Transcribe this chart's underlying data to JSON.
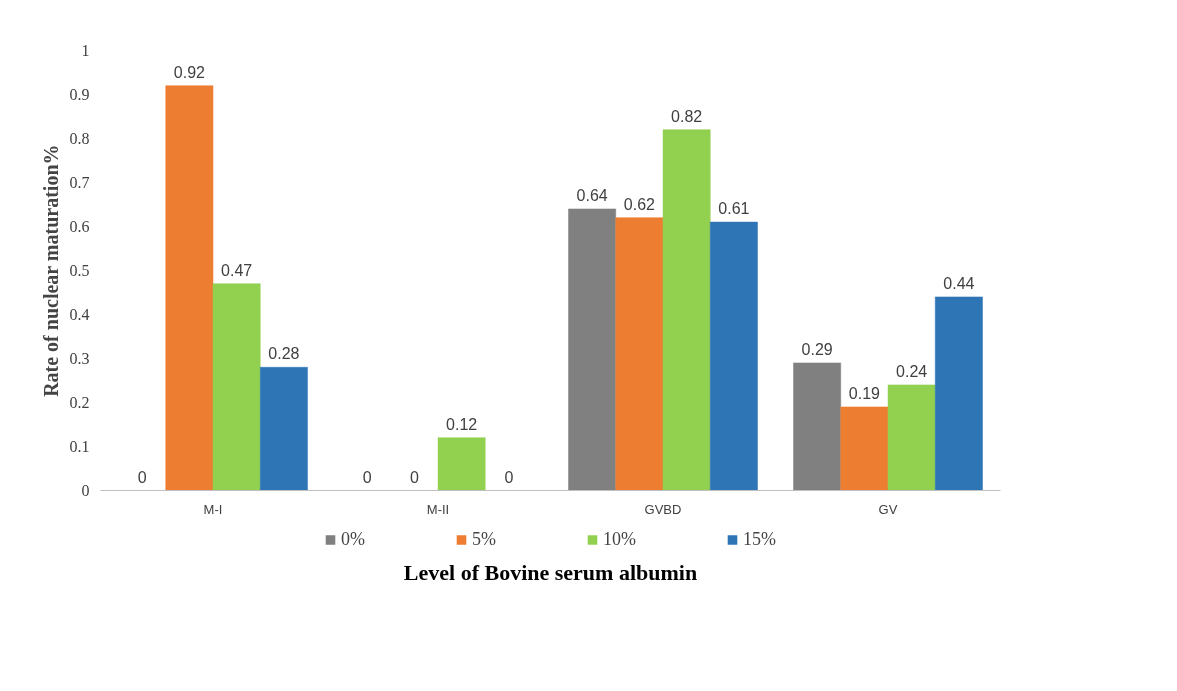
{
  "chart_data": {
    "type": "bar",
    "xlabel": "Level of Bovine serum albumin",
    "ylabel": "Rate of nuclear maturation%",
    "categories": [
      "M-I",
      "M-II",
      "GVBD",
      "GV"
    ],
    "series": [
      {
        "name": "0%",
        "color": "#808080",
        "values": [
          0,
          0,
          0.64,
          0.29
        ]
      },
      {
        "name": "5%",
        "color": "#ed7d31",
        "values": [
          0.92,
          0,
          0.62,
          0.19
        ]
      },
      {
        "name": "10%",
        "color": "#92d050",
        "values": [
          0.47,
          0.12,
          0.82,
          0.24
        ]
      },
      {
        "name": "15%",
        "color": "#2e75b6",
        "values": [
          0.28,
          0,
          0.61,
          0.44
        ]
      }
    ],
    "ylim": [
      0,
      1
    ],
    "yticks": [
      0,
      0.1,
      0.2,
      0.3,
      0.4,
      0.5,
      0.6,
      0.7,
      0.8,
      0.9,
      1
    ],
    "grid": false,
    "legend": "bottom",
    "data_labels": true
  }
}
